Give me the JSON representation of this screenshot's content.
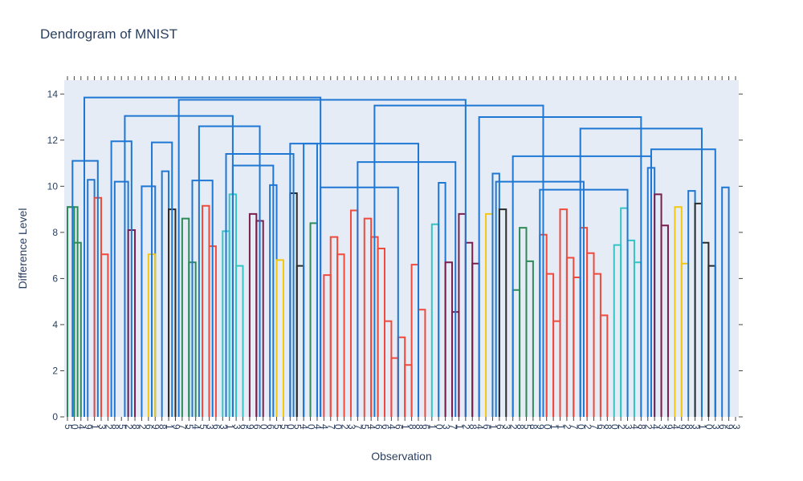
{
  "chart_data": {
    "type": "dendrogram",
    "title": "Dendrogram of MNIST",
    "xlabel": "Observation",
    "ylabel": "Difference Level",
    "ylim": [
      0,
      14.6
    ],
    "yticks": [
      0,
      2,
      4,
      6,
      8,
      10,
      12,
      14
    ],
    "grid": false,
    "plot_background": "#e5ecf6",
    "leaves": [
      "5",
      "0",
      "4",
      "9",
      "1",
      "3",
      "2",
      "8",
      "5",
      "2",
      "8",
      "2",
      "6",
      "9",
      "8",
      "1",
      "9",
      "7",
      "5",
      "4",
      "5",
      "3",
      "6",
      "3",
      "1",
      "3",
      "6",
      "9",
      "6",
      "0",
      "6",
      "5",
      "5",
      "0",
      "5",
      "4",
      "0",
      "4",
      "4",
      "7",
      "0",
      "2",
      "3",
      "7",
      "5",
      "4",
      "6",
      "6",
      "4",
      "6",
      "1",
      "8",
      "8",
      "6",
      "1",
      "0",
      "3",
      "7",
      "1",
      "2",
      "8",
      "4",
      "6",
      "1",
      "6",
      "3",
      "2",
      "8",
      "5",
      "8",
      "9",
      "0",
      "1",
      "1",
      "2",
      "7",
      "0",
      "2",
      "7",
      "6",
      "8",
      "0",
      "2",
      "3",
      "4",
      "8",
      "2",
      "4",
      "3",
      "9",
      "4",
      "9",
      "8",
      "3",
      "1",
      "0",
      "3",
      "6",
      "9",
      "3"
    ],
    "merges": [
      {
        "l": 0,
        "r": 1,
        "h": 9.1,
        "c": "#2e8b57"
      },
      {
        "l": 1,
        "r": 2,
        "h": 7.55,
        "c": "#2e8b57"
      },
      {
        "l": 0,
        "r": 1.5,
        "h": 9.1,
        "c": "#2e8b57"
      },
      {
        "l": 3,
        "r": 4,
        "h": 10.28,
        "c": "#1f77d4"
      },
      {
        "l": 4,
        "r": 5,
        "h": 9.5,
        "c": "#ef4a3c"
      },
      {
        "l": 5,
        "r": 6,
        "h": 7.05,
        "c": "#ef4a3c"
      },
      {
        "l": 7,
        "r": 9,
        "h": 10.2,
        "c": "#1f77d4"
      },
      {
        "l": 9,
        "r": 10,
        "h": 8.1,
        "c": "#7a1f4e"
      },
      {
        "l": 11,
        "r": 13,
        "h": 10.0,
        "c": "#1f77d4"
      },
      {
        "l": 12,
        "r": 13,
        "h": 7.05,
        "c": "#f2c811"
      },
      {
        "l": 14,
        "r": 15,
        "h": 10.65,
        "c": "#1f77d4"
      },
      {
        "l": 15,
        "r": 16,
        "h": 9.0,
        "c": "#2b2b2b"
      },
      {
        "l": 17,
        "r": 18,
        "h": 8.6,
        "c": "#2e8b57"
      },
      {
        "l": 18,
        "r": 19,
        "h": 6.7,
        "c": "#2e8b57"
      },
      {
        "l": 20,
        "r": 21,
        "h": 9.15,
        "c": "#ef4a3c"
      },
      {
        "l": 21,
        "r": 22,
        "h": 7.4,
        "c": "#ef4a3c"
      },
      {
        "l": 23,
        "r": 24,
        "h": 8.05,
        "c": "#35c4c4"
      },
      {
        "l": 24,
        "r": 25,
        "h": 9.65,
        "c": "#35c4c4"
      },
      {
        "l": 25,
        "r": 26,
        "h": 6.55,
        "c": "#35c4c4"
      },
      {
        "l": 27,
        "r": 28,
        "h": 8.8,
        "c": "#7a1f4e"
      },
      {
        "l": 28,
        "r": 29,
        "h": 8.5,
        "c": "#7a1f4e"
      },
      {
        "l": 30,
        "r": 31,
        "h": 10.05,
        "c": "#1f77d4"
      },
      {
        "l": 31,
        "r": 32,
        "h": 6.8,
        "c": "#f2c811"
      },
      {
        "l": 33,
        "r": 34,
        "h": 9.7,
        "c": "#2b2b2b"
      },
      {
        "l": 34,
        "r": 35,
        "h": 6.55,
        "c": "#2b2b2b"
      },
      {
        "l": 36,
        "r": 37,
        "h": 8.4,
        "c": "#2e8b57"
      },
      {
        "l": 38,
        "r": 39,
        "h": 6.15,
        "c": "#ef4a3c"
      },
      {
        "l": 39,
        "r": 40,
        "h": 7.8,
        "c": "#ef4a3c"
      },
      {
        "l": 40,
        "r": 41,
        "h": 7.05,
        "c": "#ef4a3c"
      },
      {
        "l": 42,
        "r": 43,
        "h": 8.95,
        "c": "#ef4a3c"
      },
      {
        "l": 44,
        "r": 45,
        "h": 8.6,
        "c": "#ef4a3c"
      },
      {
        "l": 45,
        "r": 46,
        "h": 7.8,
        "c": "#ef4a3c"
      },
      {
        "l": 46,
        "r": 47,
        "h": 7.3,
        "c": "#ef4a3c"
      },
      {
        "l": 47,
        "r": 48,
        "h": 4.15,
        "c": "#ef4a3c"
      },
      {
        "l": 48,
        "r": 49,
        "h": 2.55,
        "c": "#ef4a3c"
      },
      {
        "l": 49,
        "r": 50,
        "h": 3.45,
        "c": "#ef4a3c"
      },
      {
        "l": 50,
        "r": 51,
        "h": 2.25,
        "c": "#ef4a3c"
      },
      {
        "l": 51,
        "r": 52,
        "h": 6.6,
        "c": "#ef4a3c"
      },
      {
        "l": 52,
        "r": 53,
        "h": 4.65,
        "c": "#ef4a3c"
      },
      {
        "l": 54,
        "r": 55,
        "h": 8.35,
        "c": "#35c4c4"
      },
      {
        "l": 55,
        "r": 56,
        "h": 10.15,
        "c": "#1f77d4"
      },
      {
        "l": 56,
        "r": 57,
        "h": 6.7,
        "c": "#7a1f4e"
      },
      {
        "l": 57,
        "r": 58,
        "h": 4.55,
        "c": "#7a1f4e"
      },
      {
        "l": 58,
        "r": 59,
        "h": 8.8,
        "c": "#7a1f4e"
      },
      {
        "l": 59,
        "r": 60,
        "h": 7.55,
        "c": "#7a1f4e"
      },
      {
        "l": 60,
        "r": 61,
        "h": 6.65,
        "c": "#7a1f4e"
      },
      {
        "l": 62,
        "r": 63,
        "h": 8.8,
        "c": "#f2c811"
      },
      {
        "l": 63,
        "r": 64,
        "h": 10.55,
        "c": "#1f77d4"
      },
      {
        "l": 64,
        "r": 65,
        "h": 9.0,
        "c": "#2b2b2b"
      },
      {
        "l": 66,
        "r": 67,
        "h": 5.5,
        "c": "#2e8b57"
      },
      {
        "l": 67,
        "r": 68,
        "h": 8.2,
        "c": "#2e8b57"
      },
      {
        "l": 68,
        "r": 69,
        "h": 6.75,
        "c": "#2e8b57"
      },
      {
        "l": 70,
        "r": 71,
        "h": 7.9,
        "c": "#ef4a3c"
      },
      {
        "l": 71,
        "r": 72,
        "h": 6.2,
        "c": "#ef4a3c"
      },
      {
        "l": 72,
        "r": 73,
        "h": 4.15,
        "c": "#ef4a3c"
      },
      {
        "l": 73,
        "r": 74,
        "h": 9.0,
        "c": "#ef4a3c"
      },
      {
        "l": 74,
        "r": 75,
        "h": 6.9,
        "c": "#ef4a3c"
      },
      {
        "l": 75,
        "r": 76,
        "h": 6.05,
        "c": "#ef4a3c"
      },
      {
        "l": 76,
        "r": 77,
        "h": 8.2,
        "c": "#ef4a3c"
      },
      {
        "l": 77,
        "r": 78,
        "h": 7.1,
        "c": "#ef4a3c"
      },
      {
        "l": 78,
        "r": 79,
        "h": 6.2,
        "c": "#ef4a3c"
      },
      {
        "l": 79,
        "r": 80,
        "h": 4.4,
        "c": "#ef4a3c"
      },
      {
        "l": 81,
        "r": 82,
        "h": 7.45,
        "c": "#35c4c4"
      },
      {
        "l": 82,
        "r": 83,
        "h": 9.05,
        "c": "#35c4c4"
      },
      {
        "l": 83,
        "r": 84,
        "h": 7.65,
        "c": "#35c4c4"
      },
      {
        "l": 84,
        "r": 85,
        "h": 6.7,
        "c": "#35c4c4"
      },
      {
        "l": 86,
        "r": 87,
        "h": 10.8,
        "c": "#1f77d4"
      },
      {
        "l": 87,
        "r": 88,
        "h": 9.65,
        "c": "#7a1f4e"
      },
      {
        "l": 88,
        "r": 89,
        "h": 8.3,
        "c": "#7a1f4e"
      },
      {
        "l": 90,
        "r": 91,
        "h": 9.1,
        "c": "#f2c811"
      },
      {
        "l": 91,
        "r": 92,
        "h": 6.65,
        "c": "#f2c811"
      },
      {
        "l": 92,
        "r": 93,
        "h": 9.8,
        "c": "#1f77d4"
      },
      {
        "l": 93,
        "r": 94,
        "h": 9.25,
        "c": "#2b2b2b"
      },
      {
        "l": 94,
        "r": 95,
        "h": 7.55,
        "c": "#2b2b2b"
      },
      {
        "l": 95,
        "r": 96,
        "h": 6.55,
        "c": "#2b2b2b"
      },
      {
        "l": 97,
        "r": 98,
        "h": 9.95,
        "c": "#1f77d4"
      }
    ],
    "upper_links": [
      {
        "a": 0.75,
        "b": 4.5,
        "h": 11.1
      },
      {
        "a": 6.5,
        "b": 9.5,
        "h": 11.95
      },
      {
        "a": 12.5,
        "b": 15.5,
        "h": 11.9
      },
      {
        "a": 18.5,
        "b": 21.5,
        "h": 10.25
      },
      {
        "a": 24.5,
        "b": 30.5,
        "h": 10.9
      },
      {
        "a": 23.5,
        "b": 33.5,
        "h": 11.4
      },
      {
        "a": 19.5,
        "b": 28.5,
        "h": 12.6
      },
      {
        "a": 8.5,
        "b": 24.5,
        "h": 13.05
      },
      {
        "a": 33.0,
        "b": 37.0,
        "h": 11.85
      },
      {
        "a": 37.5,
        "b": 49.0,
        "h": 9.95
      },
      {
        "a": 43.0,
        "b": 57.5,
        "h": 11.05
      },
      {
        "a": 35.0,
        "b": 52.0,
        "h": 11.85
      },
      {
        "a": 63.5,
        "b": 76.5,
        "h": 10.2
      },
      {
        "a": 70.0,
        "b": 83.0,
        "h": 9.85
      },
      {
        "a": 66.0,
        "b": 86.5,
        "h": 11.3
      },
      {
        "a": 86.5,
        "b": 96.0,
        "h": 11.6
      },
      {
        "a": 76.0,
        "b": 94.0,
        "h": 12.5
      },
      {
        "a": 61.0,
        "b": 85.0,
        "h": 13.0
      },
      {
        "a": 45.5,
        "b": 70.5,
        "h": 13.5
      },
      {
        "a": 16.5,
        "b": 59.0,
        "h": 13.75
      },
      {
        "a": 2.5,
        "b": 37.5,
        "h": 13.85
      }
    ]
  }
}
